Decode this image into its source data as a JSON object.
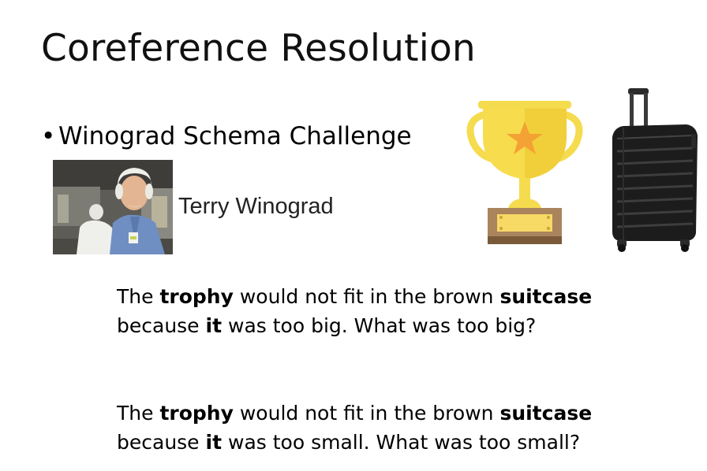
{
  "slide": {
    "title": "Coreference Resolution",
    "bullet": {
      "marker": "•",
      "text": "Winograd Schema Challenge"
    },
    "person": {
      "caption": "Terry Winograd"
    },
    "examples": [
      {
        "line1": {
          "w1": "The ",
          "w2": "trophy",
          "w3": " would not fit in the brown ",
          "w4": "suitcase"
        },
        "line2": {
          "w1": "because ",
          "w2": "it",
          "w3": " was too big. What was too big?"
        }
      },
      {
        "line1": {
          "w1": "The ",
          "w2": "trophy",
          "w3": " would not fit in the brown ",
          "w4": "suitcase"
        },
        "line2": {
          "w1": "because ",
          "w2": "it",
          "w3": " was too small. What was too small?"
        }
      }
    ]
  }
}
